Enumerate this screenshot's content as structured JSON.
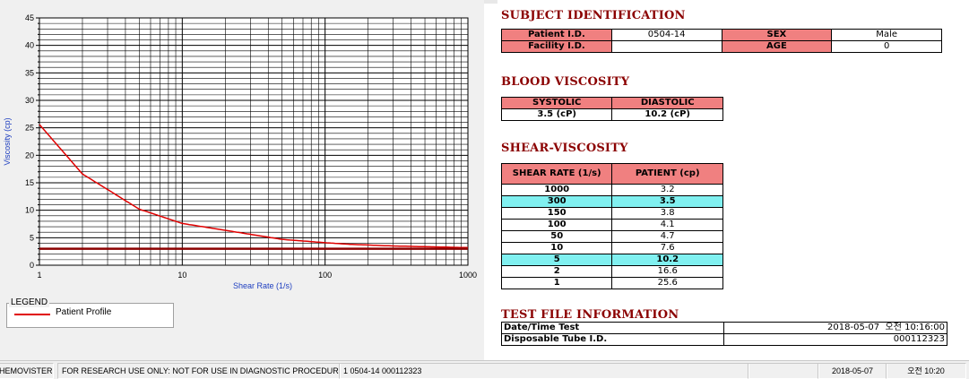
{
  "chart_data": {
    "type": "line",
    "xscale": "log",
    "xlim": [
      1,
      1000
    ],
    "ylim": [
      0,
      45
    ],
    "xlabel": "Shear Rate (1/s)",
    "ylabel": "Viscosity (cp)",
    "xticks": [
      "1",
      "10",
      "100",
      "1000"
    ],
    "yticks": [
      "0",
      "5",
      "10",
      "15",
      "20",
      "25",
      "30",
      "35",
      "40",
      "45"
    ],
    "grid": true,
    "series": [
      {
        "name": "Patient Profile",
        "color": "#e00000",
        "x": [
          1,
          2,
          5,
          10,
          50,
          100,
          150,
          300,
          1000
        ],
        "y": [
          25.6,
          16.6,
          10.2,
          7.6,
          4.7,
          4.1,
          3.8,
          3.5,
          3.2
        ]
      },
      {
        "color": "#8b0000",
        "x": [
          1,
          1000
        ],
        "y": [
          3.0,
          3.0
        ]
      }
    ],
    "legend": {
      "title": "LEGEND",
      "position": "bottom-left"
    }
  },
  "subject": {
    "heading": "SUBJECT IDENTIFICATION",
    "patient_id_label": "Patient I.D.",
    "patient_id_value": "0504-14",
    "sex_label": "SEX",
    "sex_value": "Male",
    "facility_id_label": "Facility I.D.",
    "facility_id_value": "",
    "age_label": "AGE",
    "age_value": "0"
  },
  "blood_viscosity": {
    "heading": "BLOOD VISCOSITY",
    "systolic_label": "SYSTOLIC",
    "diastolic_label": "DIASTOLIC",
    "systolic_value": "3.5 (cP)",
    "diastolic_value": "10.2 (cP)"
  },
  "shear_viscosity": {
    "heading": "SHEAR-VISCOSITY",
    "col_shear": "SHEAR RATE (1/s)",
    "col_patient": "PATIENT (cp)",
    "rows": [
      {
        "rate": "1000",
        "value": "3.2",
        "highlight": false
      },
      {
        "rate": "300",
        "value": "3.5",
        "highlight": true
      },
      {
        "rate": "150",
        "value": "3.8",
        "highlight": false
      },
      {
        "rate": "100",
        "value": "4.1",
        "highlight": false
      },
      {
        "rate": "50",
        "value": "4.7",
        "highlight": false
      },
      {
        "rate": "10",
        "value": "7.6",
        "highlight": false
      },
      {
        "rate": "5",
        "value": "10.2",
        "highlight": true
      },
      {
        "rate": "2",
        "value": "16.6",
        "highlight": false
      },
      {
        "rate": "1",
        "value": "25.6",
        "highlight": false
      }
    ]
  },
  "test_file": {
    "heading": "TEST FILE INFORMATION",
    "datetime_label": "Date/Time Test",
    "datetime_value": "2018-05-07  오전 10:16:00",
    "tube_label": "Disposable Tube I.D.",
    "tube_value": "000112323"
  },
  "status_bar": {
    "app": "HEMOVISTER",
    "notice": "FOR RESEARCH USE ONLY: NOT FOR USE IN DIAGNOSTIC PROCEDURES",
    "record": "1  0504-14  000112323",
    "date": "2018-05-07",
    "time": "오전 10:20"
  },
  "colors": {
    "header_fill": "#f08080",
    "highlight_fill": "#80f0f0",
    "heading_text": "#8b0000",
    "patient_curve": "#e00000"
  }
}
